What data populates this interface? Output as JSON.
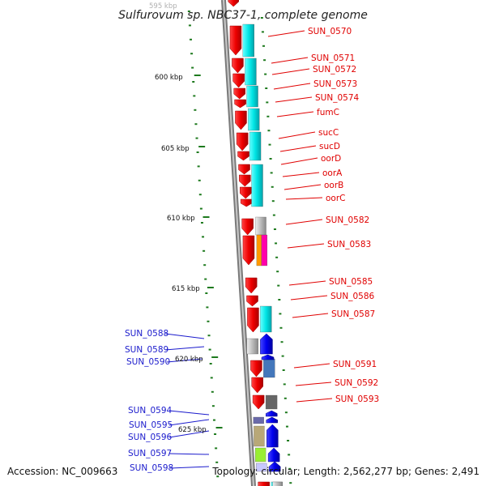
{
  "title": "Sulfurovum sp. NBC37-1, complete genome",
  "accession": "Accession: NC_009663",
  "topology": "Topology: circular; Length: 2,562,277 bp; Genes: 2,491",
  "scale_labels": [
    "595 kbp",
    "600 kbp",
    "605 kbp",
    "610 kbp",
    "615 kbp",
    "620 kbp",
    "625 kbp"
  ],
  "right_genes": [
    "SUN_0570",
    "SUN_0571",
    "SUN_0572",
    "SUN_0573",
    "SUN_0574",
    "fumC",
    "sucC",
    "sucD",
    "oorD",
    "oorA",
    "oorB",
    "oorC",
    "SUN_0582",
    "SUN_0583",
    "SUN_0585",
    "SUN_0586",
    "SUN_0587",
    "SUN_0591",
    "SUN_0592",
    "SUN_0593"
  ],
  "left_genes": [
    "SUN_0588",
    "SUN_0589",
    "SUN_0590",
    "SUN_0594",
    "SUN_0595",
    "SUN_0596",
    "SUN_0597",
    "SUN_0598"
  ],
  "colors": {
    "forward_gene": "#ee1111",
    "reverse_gene": "#1111ee",
    "cog": "#00e5e5",
    "backbone": "#888888",
    "tick": "#1e7a1e",
    "label_forward": "#e00000",
    "label_reverse": "#1a1acc"
  }
}
